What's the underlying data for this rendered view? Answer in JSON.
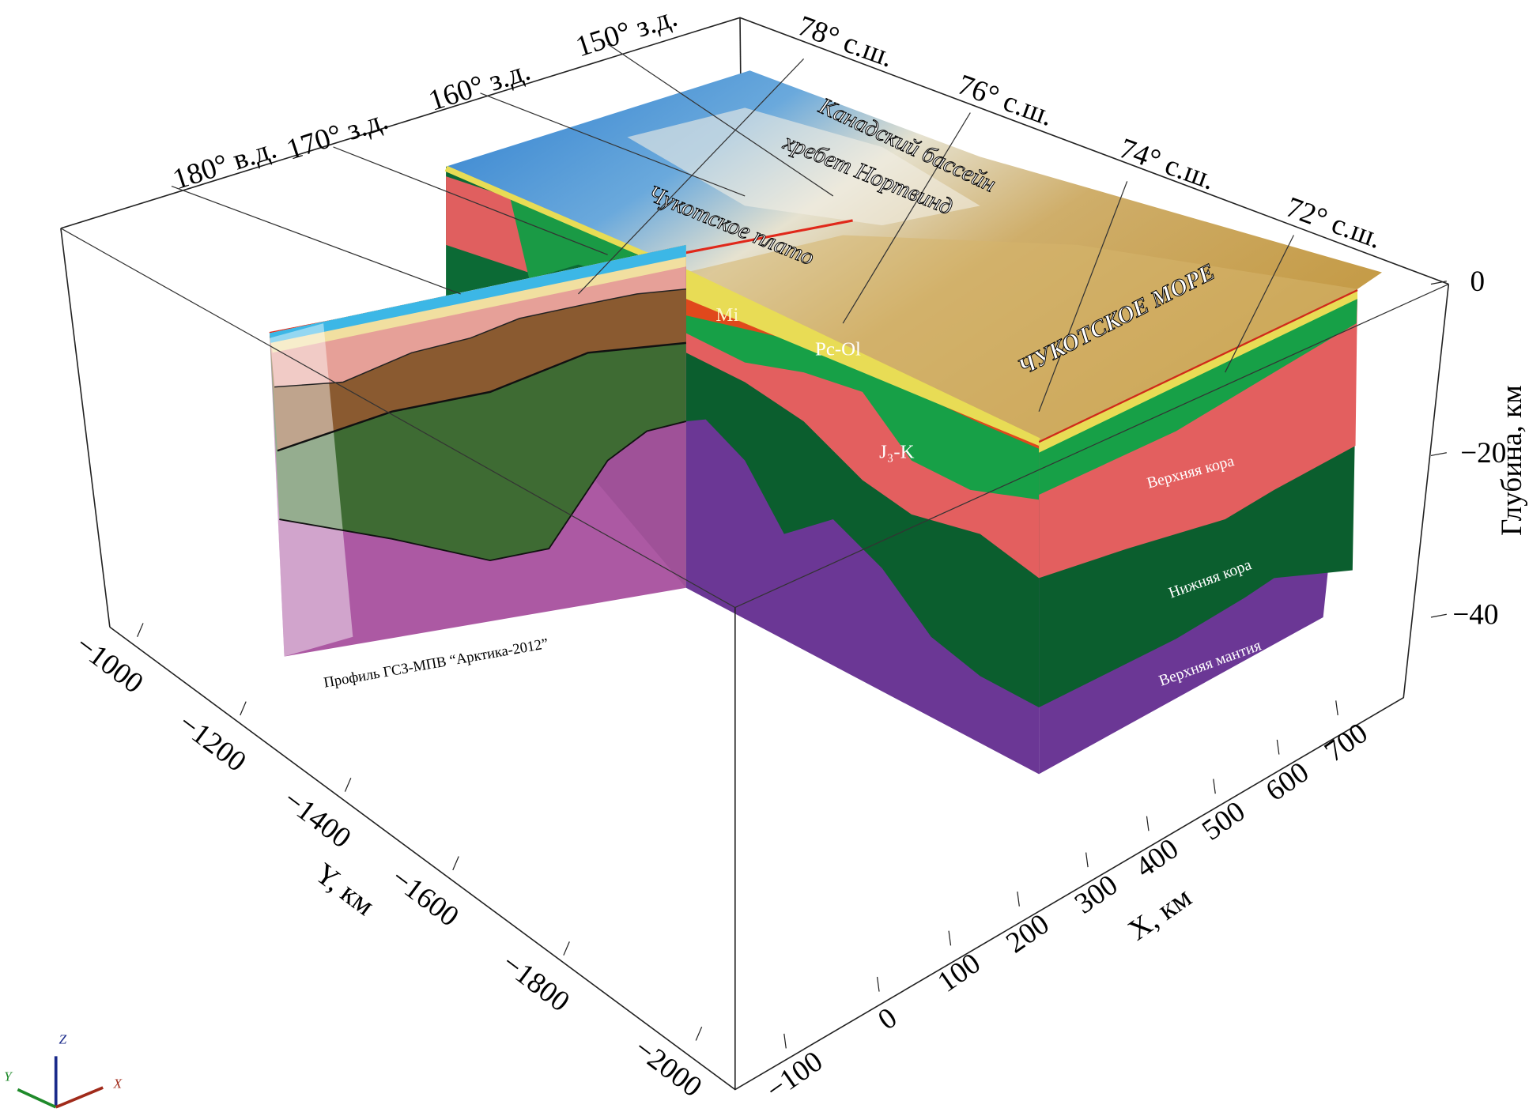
{
  "map_labels": {
    "longitudes": [
      "180° в.д.",
      "170° з.д.",
      "160° з.д.",
      "150° з.д."
    ],
    "latitudes": [
      "78° с.ш.",
      "76° с.ш.",
      "74° с.ш.",
      "72° с.ш."
    ]
  },
  "regions": [
    "Канадский бассейн",
    "хребет Нортвинд",
    "Чукотское плато",
    "ЧУКОТСКОЕ МОРЕ"
  ],
  "layers": [
    "Mi",
    "Pc-Ol",
    "J₃-K",
    "Верхняя кора",
    "Нижняя кора",
    "Верхняя мантия"
  ],
  "profile_label": "Профиль ГСЗ-МПВ “Арктика-2012”",
  "axes": {
    "depth": {
      "label": "Глубина, км",
      "ticks": [
        "0",
        "−20",
        "−40"
      ]
    },
    "y": {
      "label": "Y, км",
      "ticks": [
        "−1000",
        "−1200",
        "−1400",
        "−1600",
        "−1800",
        "−2000"
      ]
    },
    "x": {
      "label": "X, км",
      "ticks": [
        "−100",
        "0",
        "100",
        "200",
        "300",
        "400",
        "500",
        "600",
        "700"
      ]
    }
  },
  "triad": [
    "Z",
    "Y",
    "X"
  ]
}
